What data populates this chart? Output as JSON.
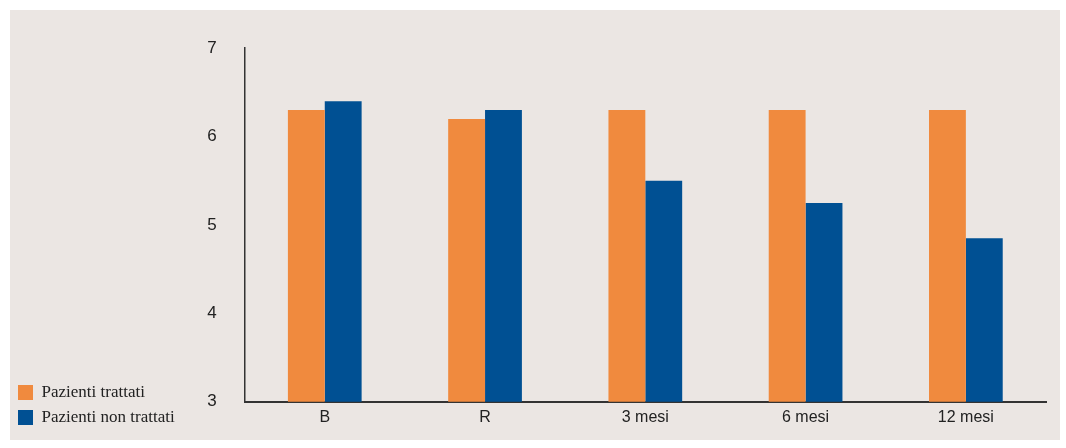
{
  "chart_data": {
    "type": "bar",
    "categories": [
      "B",
      "R",
      "3 mesi",
      "6 mesi",
      "12 mesi"
    ],
    "series": [
      {
        "name": "Pazienti trattati",
        "color": "#f08a3e",
        "values": [
          6.3,
          6.2,
          6.3,
          6.3,
          6.3
        ]
      },
      {
        "name": "Pazienti non trattati",
        "color": "#005093",
        "values": [
          6.4,
          6.3,
          5.5,
          5.25,
          4.85
        ]
      }
    ],
    "ylim": [
      3,
      7
    ],
    "yticks": [
      3,
      4,
      5,
      6,
      7
    ],
    "grid": false,
    "legend": "bottom left"
  }
}
